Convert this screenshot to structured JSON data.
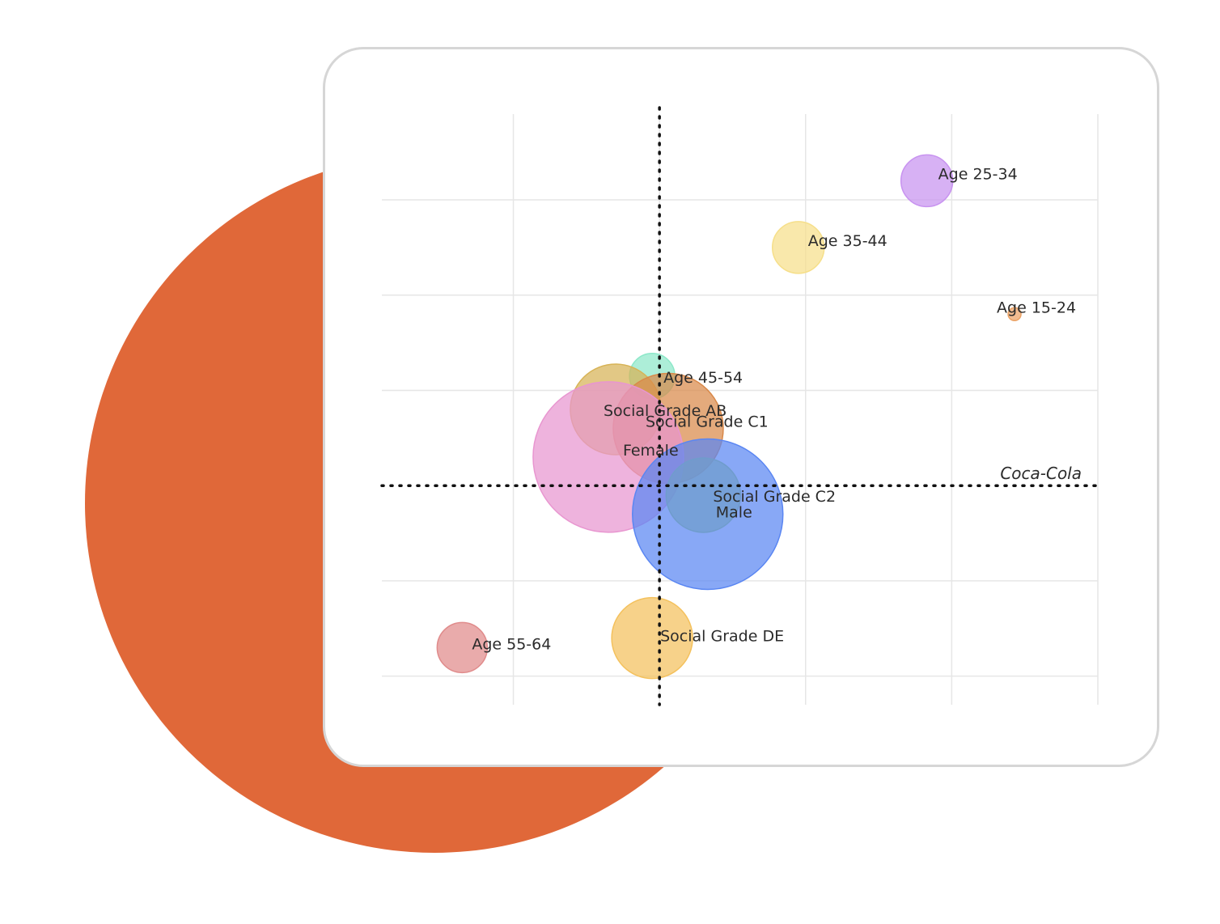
{
  "chart_data": {
    "type": "scatter",
    "variant": "bubble",
    "title": "",
    "xlabel": "",
    "ylabel": "",
    "grid": true,
    "reference_lines": {
      "vertical_x": 0,
      "horizontal_y": 0,
      "style": "dotted",
      "horizontal_label": "Coca-Cola"
    },
    "series": [
      {
        "name": "Age 25-34",
        "x": 1.83,
        "y": 3.2,
        "size": 32,
        "color": "#c893f0"
      },
      {
        "name": "Age 35-44",
        "x": 0.95,
        "y": 2.5,
        "size": 32,
        "color": "#f6df8a"
      },
      {
        "name": "Age 15-24",
        "x": 2.43,
        "y": 1.8,
        "size": 8,
        "color": "#eba265"
      },
      {
        "name": "Age 45-54",
        "x": -0.05,
        "y": 1.15,
        "size": 28,
        "color": "#8de8c9"
      },
      {
        "name": "Social Grade AB",
        "x": -0.3,
        "y": 0.8,
        "size": 56,
        "color": "#d7b356"
      },
      {
        "name": "Social Grade C1",
        "x": 0.06,
        "y": 0.6,
        "size": 68,
        "color": "#d9894a"
      },
      {
        "name": "Female",
        "x": -0.35,
        "y": 0.3,
        "size": 93,
        "color": "#e896d0"
      },
      {
        "name": "Social Grade C2",
        "x": 0.3,
        "y": -0.1,
        "size": 46,
        "color": "#a5d469"
      },
      {
        "name": "Male",
        "x": 0.33,
        "y": -0.3,
        "size": 93,
        "color": "#5a86f2"
      },
      {
        "name": "Social Grade DE",
        "x": -0.05,
        "y": -1.6,
        "size": 50,
        "color": "#f4c15d"
      },
      {
        "name": "Age 55-64",
        "x": -1.35,
        "y": -1.7,
        "size": 31,
        "color": "#e08b8b"
      }
    ],
    "xlim": [
      -1.9,
      3.0
    ],
    "ylim": [
      -2.3,
      3.9
    ],
    "xticks": [
      -1.0,
      0.0,
      1.0,
      2.0,
      3.0
    ],
    "yticks": [
      -2.0,
      -1.0,
      1.0,
      2.0,
      3.0
    ]
  }
}
